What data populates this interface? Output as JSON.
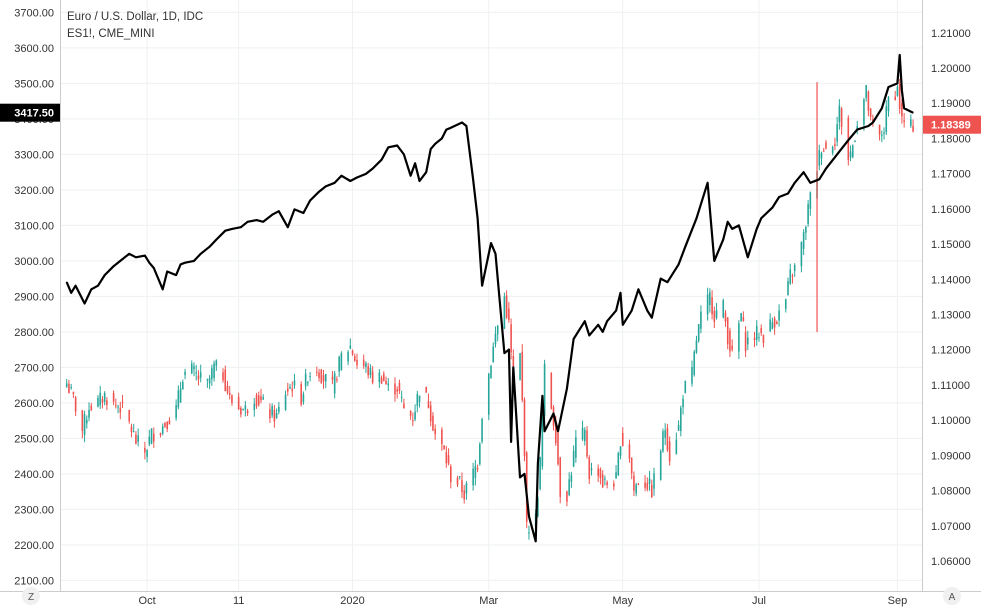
{
  "chart_data": {
    "type": "line",
    "title": "Euro / U.S. Dollar, 1D, IDC",
    "subtitle": "ES1!, CME_MINI",
    "x_ticks": [
      {
        "label": "Oct",
        "date": "2019-10-01"
      },
      {
        "label": "11",
        "date": "2019-11-11"
      },
      {
        "label": "2020",
        "date": "2020-01-01"
      },
      {
        "label": "Mar",
        "date": "2020-03-02"
      },
      {
        "label": "May",
        "date": "2020-05-01"
      },
      {
        "label": "Jul",
        "date": "2020-07-01"
      },
      {
        "label": "Sep",
        "date": "2020-09-01"
      }
    ],
    "x_range": [
      "2019-08-23",
      "2020-09-12"
    ],
    "left_axis": {
      "ylim": [
        2070,
        3735
      ],
      "ticks": [
        "3700.00",
        "3600.00",
        "3500.00",
        "3400.00",
        "3300.00",
        "3200.00",
        "3100.00",
        "3000.00",
        "2900.00",
        "2800.00",
        "2700.00",
        "2600.00",
        "2500.00",
        "2400.00",
        "2300.00",
        "2200.00",
        "2100.00"
      ],
      "last_value": "3417.50"
    },
    "right_axis": {
      "ylim": [
        1.0515,
        1.2193
      ],
      "ticks": [
        "1.21000",
        "1.20000",
        "1.19000",
        "1.18000",
        "1.17000",
        "1.16000",
        "1.15000",
        "1.14000",
        "1.13000",
        "1.12000",
        "1.11000",
        "1.10000",
        "1.09000",
        "1.08000",
        "1.07000",
        "1.06000"
      ],
      "last_value": "1.18389"
    },
    "series": [
      {
        "name": "ES1!, CME_MINI",
        "style": "line",
        "axis": "left",
        "color": "#000000",
        "points": [
          [
            "2019-08-26",
            2940
          ],
          [
            "2019-08-28",
            2910
          ],
          [
            "2019-08-30",
            2930
          ],
          [
            "2019-09-03",
            2880
          ],
          [
            "2019-09-06",
            2920
          ],
          [
            "2019-09-09",
            2930
          ],
          [
            "2019-09-12",
            2960
          ],
          [
            "2019-09-16",
            2985
          ],
          [
            "2019-09-19",
            3000
          ],
          [
            "2019-09-23",
            3020
          ],
          [
            "2019-09-26",
            3010
          ],
          [
            "2019-09-30",
            3015
          ],
          [
            "2019-10-02",
            2995
          ],
          [
            "2019-10-04",
            2980
          ],
          [
            "2019-10-08",
            2920
          ],
          [
            "2019-10-10",
            2970
          ],
          [
            "2019-10-14",
            2960
          ],
          [
            "2019-10-16",
            2990
          ],
          [
            "2019-10-18",
            2995
          ],
          [
            "2019-10-22",
            3000
          ],
          [
            "2019-10-25",
            3020
          ],
          [
            "2019-10-29",
            3040
          ],
          [
            "2019-11-01",
            3060
          ],
          [
            "2019-11-05",
            3085
          ],
          [
            "2019-11-08",
            3090
          ],
          [
            "2019-11-12",
            3095
          ],
          [
            "2019-11-15",
            3110
          ],
          [
            "2019-11-19",
            3115
          ],
          [
            "2019-11-22",
            3110
          ],
          [
            "2019-11-26",
            3130
          ],
          [
            "2019-11-29",
            3140
          ],
          [
            "2019-12-03",
            3095
          ],
          [
            "2019-12-06",
            3145
          ],
          [
            "2019-12-10",
            3135
          ],
          [
            "2019-12-13",
            3170
          ],
          [
            "2019-12-17",
            3195
          ],
          [
            "2019-12-20",
            3210
          ],
          [
            "2019-12-24",
            3220
          ],
          [
            "2019-12-27",
            3240
          ],
          [
            "2019-12-31",
            3225
          ],
          [
            "2020-01-03",
            3235
          ],
          [
            "2020-01-07",
            3245
          ],
          [
            "2020-01-10",
            3260
          ],
          [
            "2020-01-14",
            3285
          ],
          [
            "2020-01-17",
            3320
          ],
          [
            "2020-01-21",
            3325
          ],
          [
            "2020-01-24",
            3300
          ],
          [
            "2020-01-27",
            3240
          ],
          [
            "2020-01-29",
            3275
          ],
          [
            "2020-01-31",
            3225
          ],
          [
            "2020-02-03",
            3250
          ],
          [
            "2020-02-05",
            3315
          ],
          [
            "2020-02-07",
            3330
          ],
          [
            "2020-02-10",
            3345
          ],
          [
            "2020-02-12",
            3370
          ],
          [
            "2020-02-14",
            3375
          ],
          [
            "2020-02-19",
            3390
          ],
          [
            "2020-02-21",
            3380
          ],
          [
            "2020-02-24",
            3230
          ],
          [
            "2020-02-26",
            3120
          ],
          [
            "2020-02-28",
            2930
          ],
          [
            "2020-03-03",
            3050
          ],
          [
            "2020-03-05",
            3020
          ],
          [
            "2020-03-09",
            2740
          ],
          [
            "2020-03-11",
            2750
          ],
          [
            "2020-03-12",
            2490
          ],
          [
            "2020-03-13",
            2700
          ],
          [
            "2020-03-16",
            2390
          ],
          [
            "2020-03-18",
            2400
          ],
          [
            "2020-03-20",
            2280
          ],
          [
            "2020-03-23",
            2210
          ],
          [
            "2020-03-24",
            2430
          ],
          [
            "2020-03-26",
            2620
          ],
          [
            "2020-03-27",
            2520
          ],
          [
            "2020-03-31",
            2570
          ],
          [
            "2020-04-02",
            2520
          ],
          [
            "2020-04-06",
            2640
          ],
          [
            "2020-04-09",
            2780
          ],
          [
            "2020-04-14",
            2830
          ],
          [
            "2020-04-16",
            2790
          ],
          [
            "2020-04-20",
            2820
          ],
          [
            "2020-04-22",
            2800
          ],
          [
            "2020-04-24",
            2830
          ],
          [
            "2020-04-28",
            2860
          ],
          [
            "2020-04-30",
            2910
          ],
          [
            "2020-05-01",
            2820
          ],
          [
            "2020-05-05",
            2860
          ],
          [
            "2020-05-08",
            2920
          ],
          [
            "2020-05-12",
            2860
          ],
          [
            "2020-05-14",
            2840
          ],
          [
            "2020-05-18",
            2950
          ],
          [
            "2020-05-21",
            2940
          ],
          [
            "2020-05-26",
            2990
          ],
          [
            "2020-05-29",
            3040
          ],
          [
            "2020-06-03",
            3120
          ],
          [
            "2020-06-08",
            3220
          ],
          [
            "2020-06-11",
            3000
          ],
          [
            "2020-06-15",
            3060
          ],
          [
            "2020-06-17",
            3110
          ],
          [
            "2020-06-19",
            3090
          ],
          [
            "2020-06-22",
            3100
          ],
          [
            "2020-06-26",
            3010
          ],
          [
            "2020-06-30",
            3090
          ],
          [
            "2020-07-02",
            3120
          ],
          [
            "2020-07-07",
            3150
          ],
          [
            "2020-07-10",
            3180
          ],
          [
            "2020-07-14",
            3190
          ],
          [
            "2020-07-17",
            3220
          ],
          [
            "2020-07-21",
            3250
          ],
          [
            "2020-07-24",
            3220
          ],
          [
            "2020-07-28",
            3230
          ],
          [
            "2020-07-31",
            3260
          ],
          [
            "2020-08-05",
            3300
          ],
          [
            "2020-08-10",
            3340
          ],
          [
            "2020-08-14",
            3370
          ],
          [
            "2020-08-19",
            3380
          ],
          [
            "2020-08-21",
            3390
          ],
          [
            "2020-08-25",
            3430
          ],
          [
            "2020-08-28",
            3490
          ],
          [
            "2020-09-01",
            3500
          ],
          [
            "2020-09-02",
            3580
          ],
          [
            "2020-09-03",
            3480
          ],
          [
            "2020-09-04",
            3430
          ],
          [
            "2020-09-08",
            3417.5
          ]
        ]
      },
      {
        "name": "Euro / U.S. Dollar",
        "style": "candlestick",
        "axis": "right",
        "up_color": "#26a69a",
        "down_color": "#ef5350",
        "closes": [
          [
            "2019-08-26",
            1.1105
          ],
          [
            "2019-08-29",
            1.106
          ],
          [
            "2019-09-02",
            1.097
          ],
          [
            "2019-09-05",
            1.104
          ],
          [
            "2019-09-09",
            1.105
          ],
          [
            "2019-09-12",
            1.107
          ],
          [
            "2019-09-16",
            1.1045
          ],
          [
            "2019-09-19",
            1.104
          ],
          [
            "2019-09-23",
            1.099
          ],
          [
            "2019-09-26",
            1.094
          ],
          [
            "2019-09-30",
            1.091
          ],
          [
            "2019-10-03",
            1.096
          ],
          [
            "2019-10-07",
            1.0975
          ],
          [
            "2019-10-10",
            1.1
          ],
          [
            "2019-10-14",
            1.103
          ],
          [
            "2019-10-17",
            1.113
          ],
          [
            "2019-10-21",
            1.114
          ],
          [
            "2019-10-24",
            1.112
          ],
          [
            "2019-10-28",
            1.11
          ],
          [
            "2019-10-31",
            1.115
          ],
          [
            "2019-11-04",
            1.113
          ],
          [
            "2019-11-07",
            1.106
          ],
          [
            "2019-11-11",
            1.1035
          ],
          [
            "2019-11-14",
            1.103
          ],
          [
            "2019-11-18",
            1.107
          ],
          [
            "2019-11-21",
            1.105
          ],
          [
            "2019-11-25",
            1.102
          ],
          [
            "2019-11-28",
            1.101
          ],
          [
            "2019-12-02",
            1.108
          ],
          [
            "2019-12-05",
            1.11
          ],
          [
            "2019-12-09",
            1.1065
          ],
          [
            "2019-12-12",
            1.113
          ],
          [
            "2019-12-16",
            1.115
          ],
          [
            "2019-12-19",
            1.112
          ],
          [
            "2019-12-23",
            1.109
          ],
          [
            "2019-12-27",
            1.118
          ],
          [
            "2019-12-31",
            1.121
          ],
          [
            "2020-01-03",
            1.116
          ],
          [
            "2020-01-07",
            1.115
          ],
          [
            "2020-01-10",
            1.112
          ],
          [
            "2020-01-14",
            1.1125
          ],
          [
            "2020-01-17",
            1.109
          ],
          [
            "2020-01-21",
            1.1095
          ],
          [
            "2020-01-24",
            1.103
          ],
          [
            "2020-01-28",
            1.101
          ],
          [
            "2020-01-31",
            1.109
          ],
          [
            "2020-02-04",
            1.105
          ],
          [
            "2020-02-07",
            1.096
          ],
          [
            "2020-02-11",
            1.091
          ],
          [
            "2020-02-14",
            1.084
          ],
          [
            "2020-02-18",
            1.082
          ],
          [
            "2020-02-20",
            1.079
          ],
          [
            "2020-02-24",
            1.085
          ],
          [
            "2020-02-26",
            1.088
          ],
          [
            "2020-02-28",
            1.102
          ],
          [
            "2020-03-03",
            1.117
          ],
          [
            "2020-03-05",
            1.124
          ],
          [
            "2020-03-09",
            1.135
          ],
          [
            "2020-03-11",
            1.127
          ],
          [
            "2020-03-13",
            1.11
          ],
          [
            "2020-03-16",
            1.118
          ],
          [
            "2020-03-18",
            1.092
          ],
          [
            "2020-03-19",
            1.069
          ],
          [
            "2020-03-20",
            1.07
          ],
          [
            "2020-03-23",
            1.072
          ],
          [
            "2020-03-25",
            1.088
          ],
          [
            "2020-03-27",
            1.114
          ],
          [
            "2020-03-30",
            1.104
          ],
          [
            "2020-04-01",
            1.096
          ],
          [
            "2020-04-03",
            1.08
          ],
          [
            "2020-04-06",
            1.079
          ],
          [
            "2020-04-08",
            1.086
          ],
          [
            "2020-04-10",
            1.094
          ],
          [
            "2020-04-14",
            1.096
          ],
          [
            "2020-04-16",
            1.085
          ],
          [
            "2020-04-20",
            1.086
          ],
          [
            "2020-04-22",
            1.082
          ],
          [
            "2020-04-24",
            1.082
          ],
          [
            "2020-04-28",
            1.083
          ],
          [
            "2020-04-30",
            1.095
          ],
          [
            "2020-05-04",
            1.09
          ],
          [
            "2020-05-06",
            1.08
          ],
          [
            "2020-05-08",
            1.083
          ],
          [
            "2020-05-12",
            1.082
          ],
          [
            "2020-05-14",
            1.08
          ],
          [
            "2020-05-18",
            1.092
          ],
          [
            "2020-05-20",
            1.098
          ],
          [
            "2020-05-22",
            1.09
          ],
          [
            "2020-05-26",
            1.098
          ],
          [
            "2020-05-28",
            1.108
          ],
          [
            "2020-06-01",
            1.113
          ],
          [
            "2020-06-03",
            1.123
          ],
          [
            "2020-06-05",
            1.129
          ],
          [
            "2020-06-09",
            1.135
          ],
          [
            "2020-06-11",
            1.13
          ],
          [
            "2020-06-15",
            1.132
          ],
          [
            "2020-06-17",
            1.124
          ],
          [
            "2020-06-19",
            1.118
          ],
          [
            "2020-06-23",
            1.13
          ],
          [
            "2020-06-25",
            1.122
          ],
          [
            "2020-06-29",
            1.124
          ],
          [
            "2020-07-01",
            1.125
          ],
          [
            "2020-07-03",
            1.124
          ],
          [
            "2020-07-07",
            1.128
          ],
          [
            "2020-07-09",
            1.129
          ],
          [
            "2020-07-13",
            1.134
          ],
          [
            "2020-07-15",
            1.141
          ],
          [
            "2020-07-17",
            1.143
          ],
          [
            "2020-07-21",
            1.152
          ],
          [
            "2020-07-23",
            1.16
          ],
          [
            "2020-07-27",
            1.172
          ],
          [
            "2020-07-29",
            1.178
          ],
          [
            "2020-07-31",
            1.177
          ],
          [
            "2020-08-04",
            1.18
          ],
          [
            "2020-08-06",
            1.188
          ],
          [
            "2020-08-10",
            1.174
          ],
          [
            "2020-08-12",
            1.178
          ],
          [
            "2020-08-14",
            1.185
          ],
          [
            "2020-08-18",
            1.193
          ],
          [
            "2020-08-20",
            1.184
          ],
          [
            "2020-08-24",
            1.18
          ],
          [
            "2020-08-26",
            1.183
          ],
          [
            "2020-08-28",
            1.191
          ],
          [
            "2020-09-01",
            1.194
          ],
          [
            "2020-09-03",
            1.185
          ],
          [
            "2020-09-07",
            1.183
          ],
          [
            "2020-09-08",
            1.18389
          ]
        ]
      }
    ],
    "annotations": {
      "vertical_line": {
        "date": "2020-07-27",
        "from": 1.125,
        "to": 1.196,
        "color": "#ef5350"
      }
    },
    "grid": true,
    "legend": "top-left"
  },
  "corner_labels": {
    "left": "Z",
    "right": "A"
  }
}
